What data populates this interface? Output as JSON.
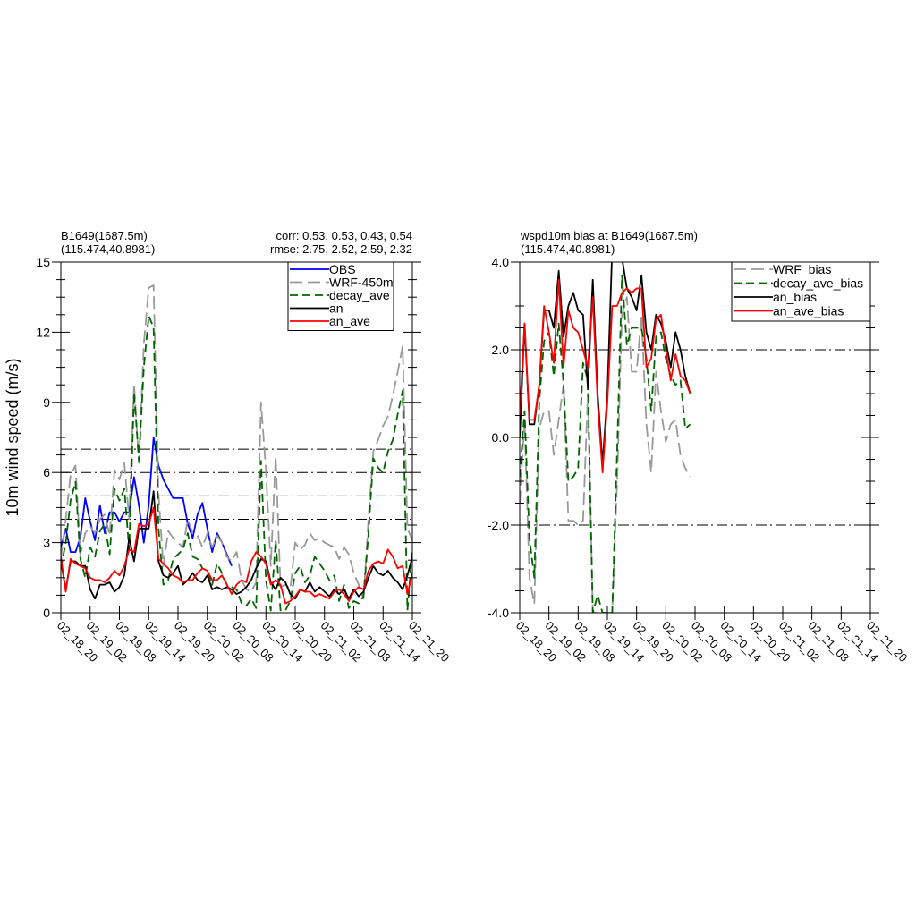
{
  "chart_data": [
    {
      "type": "line",
      "title_left": [
        "B1649(1687.5m)",
        "(115.474,40.8981)"
      ],
      "title_right": [
        "corr:  0.53, 0.53, 0.43, 0.54",
        "rmse: 2.75, 2.52, 2.59, 2.32"
      ],
      "ylabel": "10m wind speed (m/s)",
      "ylim": [
        0,
        15
      ],
      "yticks": [
        0,
        3,
        6,
        9,
        12,
        15
      ],
      "ytick_labels": [
        "0",
        "3",
        "6",
        "9",
        "12",
        "15"
      ],
      "xlim": [
        0,
        72
      ],
      "xticks": [
        0,
        6,
        12,
        18,
        24,
        30,
        36,
        42,
        48,
        54,
        60,
        66,
        72
      ],
      "xtick_labels": [
        "02_18_20",
        "02_19_02",
        "02_19_08",
        "02_19_14",
        "02_19_20",
        "02_20_02",
        "02_20_08",
        "02_20_14",
        "02_20_20",
        "02_21_02",
        "02_21_08",
        "02_21_14",
        "02_21_20"
      ],
      "ref_lines": [
        4,
        5,
        6,
        7
      ],
      "legend": "top-right",
      "series": [
        {
          "name": "OBS",
          "color": "#0000ff",
          "dash": "solid",
          "x": [
            0,
            1,
            2,
            3,
            4,
            5,
            6,
            7,
            8,
            9,
            10,
            11,
            12,
            13,
            14,
            15,
            16,
            17,
            18,
            19,
            20,
            21,
            22,
            23,
            24,
            25,
            26,
            27,
            28,
            29,
            30,
            31,
            32,
            33,
            34,
            35
          ],
          "y": [
            2.8,
            3.6,
            2.6,
            2.6,
            3.2,
            4.9,
            3.9,
            3.1,
            4.6,
            3.4,
            4.3,
            4.3,
            3.9,
            4.3,
            4.3,
            5.8,
            4.6,
            3.0,
            4.6,
            7.5,
            6.3,
            5.7,
            5.3,
            4.9,
            4.9,
            4.9,
            3.8,
            3.2,
            4.2,
            4.7,
            3.6,
            2.6,
            3.4,
            3.0,
            2.5,
            2.0
          ]
        },
        {
          "name": "WRF-450m",
          "color": "#999999",
          "dash": "long",
          "x": [
            0,
            1,
            2,
            3,
            4,
            5,
            6,
            7,
            8,
            9,
            10,
            11,
            12,
            13,
            14,
            15,
            16,
            17,
            18,
            19,
            20,
            21,
            22,
            23,
            24,
            25,
            26,
            27,
            28,
            29,
            30,
            31,
            32,
            33,
            34,
            35,
            36,
            37,
            38,
            39,
            40,
            41,
            42,
            43,
            44,
            45,
            46,
            47,
            48,
            49,
            50,
            51,
            52,
            53,
            54,
            55,
            56,
            57,
            58,
            59,
            60,
            61,
            62,
            63,
            64,
            65,
            66,
            67,
            68,
            69,
            70,
            71,
            72
          ],
          "y": [
            2.3,
            4.0,
            5.9,
            6.3,
            2.5,
            3.4,
            3.7,
            3.4,
            4.0,
            4.2,
            3.3,
            6.1,
            5.7,
            6.4,
            4.0,
            9.8,
            6.4,
            11.5,
            13.9,
            14.0,
            5.1,
            2.0,
            3.5,
            3.2,
            3.0,
            2.8,
            4.0,
            3.4,
            3.3,
            2.8,
            3.4,
            2.8,
            3.3,
            3.0,
            2.4,
            2.2,
            2.6,
            1.4,
            1.0,
            0.9,
            1.3,
            9.0,
            6.1,
            2.0,
            6.7,
            1.1,
            1.2,
            1.0,
            3.0,
            2.7,
            2.9,
            3.4,
            3.1,
            3.2,
            3.0,
            2.9,
            2.8,
            2.3,
            2.8,
            2.5,
            1.7,
            1.2,
            0.6,
            4.0,
            6.9,
            7.4,
            8.0,
            8.4,
            9.3,
            10.3,
            11.4,
            3.6,
            3.1
          ]
        },
        {
          "name": "decay_ave",
          "color": "#006400",
          "dash": "medium",
          "x": [
            0,
            1,
            2,
            3,
            4,
            5,
            6,
            7,
            8,
            9,
            10,
            11,
            12,
            13,
            14,
            15,
            16,
            17,
            18,
            19,
            20,
            21,
            22,
            23,
            24,
            25,
            26,
            27,
            28,
            29,
            30,
            31,
            32,
            33,
            34,
            35,
            36,
            37,
            38,
            39,
            40,
            41,
            42,
            43,
            44,
            45,
            46,
            47,
            48,
            49,
            50,
            51,
            52,
            53,
            54,
            55,
            56,
            57,
            58,
            59,
            60,
            61,
            62,
            63,
            64,
            65,
            66,
            67,
            68,
            69,
            70,
            71,
            72
          ],
          "y": [
            1.9,
            3.0,
            4.8,
            5.6,
            2.3,
            1.5,
            2.8,
            2.4,
            3.5,
            3.8,
            2.5,
            5.3,
            4.8,
            5.3,
            2.7,
            9.4,
            6.5,
            10.5,
            12.7,
            12.2,
            3.6,
            1.2,
            1.4,
            2.3,
            2.5,
            2.7,
            3.4,
            2.4,
            2.3,
            1.9,
            1.8,
            1.2,
            2.1,
            1.7,
            1.2,
            1.1,
            1.0,
            0.4,
            0.3,
            0.6,
            0.2,
            6.5,
            1.4,
            0.1,
            3.1,
            0.1,
            0.1,
            0.5,
            1.7,
            2.0,
            1.3,
            1.6,
            2.4,
            2.1,
            1.8,
            1.4,
            1.6,
            0.5,
            1.2,
            0.2,
            0.5,
            0.4,
            0.7,
            3.4,
            6.6,
            6.2,
            6.0,
            6.9,
            7.4,
            8.5,
            9.5,
            0.1,
            2.8
          ]
        },
        {
          "name": "an",
          "color": "#000000",
          "dash": "solid",
          "x": [
            0,
            1,
            2,
            3,
            4,
            5,
            6,
            7,
            8,
            9,
            10,
            11,
            12,
            13,
            14,
            15,
            16,
            17,
            18,
            19,
            20,
            21,
            22,
            23,
            24,
            25,
            26,
            27,
            28,
            29,
            30,
            31,
            32,
            33,
            34,
            35,
            36,
            37,
            38,
            39,
            40,
            41,
            42,
            43,
            44,
            45,
            46,
            47,
            48,
            49,
            50,
            51,
            52,
            53,
            54,
            55,
            56,
            57,
            58,
            59,
            60,
            61,
            62,
            63,
            64,
            65,
            66,
            67,
            68,
            69,
            70,
            71,
            72
          ],
          "y": [
            2.2,
            1.0,
            2.2,
            2.2,
            2.0,
            2.0,
            1.0,
            0.6,
            1.2,
            1.2,
            1.3,
            0.9,
            1.1,
            1.6,
            3.2,
            2.2,
            3.6,
            3.6,
            3.6,
            5.2,
            2.2,
            1.6,
            1.5,
            1.7,
            2.0,
            1.2,
            1.4,
            1.7,
            1.4,
            1.3,
            1.6,
            1.0,
            1.1,
            1.0,
            1.1,
            1.0,
            0.8,
            0.9,
            1.1,
            1.4,
            1.9,
            2.3,
            2.2,
            1.3,
            1.0,
            1.5,
            1.3,
            0.8,
            0.6,
            1.0,
            0.9,
            1.3,
            0.9,
            1.1,
            0.9,
            0.7,
            1.0,
            0.8,
            1.0,
            0.6,
            1.0,
            0.7,
            0.9,
            1.5,
            2.0,
            1.7,
            1.6,
            1.8,
            1.5,
            1.3,
            1.0,
            1.6,
            2.4
          ]
        },
        {
          "name": "an_ave",
          "color": "#ff0000",
          "dash": "solid",
          "x": [
            0,
            1,
            2,
            3,
            4,
            5,
            6,
            7,
            8,
            9,
            10,
            11,
            12,
            13,
            14,
            15,
            16,
            17,
            18,
            19,
            20,
            21,
            22,
            23,
            24,
            25,
            26,
            27,
            28,
            29,
            30,
            31,
            32,
            33,
            34,
            35,
            36,
            37,
            38,
            39,
            40,
            41,
            42,
            43,
            44,
            45,
            46,
            47,
            48,
            49,
            50,
            51,
            52,
            53,
            54,
            55,
            56,
            57,
            58,
            59,
            60,
            61,
            62,
            63,
            64,
            65,
            66,
            67,
            68,
            69,
            70,
            71,
            72
          ],
          "y": [
            2.4,
            0.9,
            2.3,
            2.1,
            2.0,
            1.9,
            1.5,
            1.4,
            1.4,
            1.3,
            1.5,
            1.8,
            1.6,
            2.0,
            2.7,
            2.6,
            3.8,
            3.7,
            3.8,
            4.5,
            2.3,
            2.1,
            1.9,
            1.6,
            1.5,
            1.3,
            1.4,
            1.4,
            1.7,
            1.9,
            1.8,
            1.4,
            1.4,
            1.6,
            1.2,
            0.8,
            1.2,
            1.4,
            1.3,
            2.2,
            2.6,
            2.4,
            2.1,
            1.2,
            1.4,
            1.2,
            0.4,
            0.5,
            0.7,
            1.0,
            0.9,
            0.9,
            0.7,
            0.8,
            0.7,
            0.6,
            0.9,
            1.0,
            0.8,
            0.5,
            0.9,
            1.1,
            1.0,
            1.8,
            2.1,
            2.2,
            2.1,
            2.7,
            2.4,
            1.9,
            2.0,
            0.8,
            1.7
          ]
        }
      ]
    },
    {
      "type": "line",
      "title_left": [
        "wspd10m bias at B1649(1687.5m)",
        "(115.474,40.8981)"
      ],
      "ylim": [
        -4,
        4
      ],
      "yticks": [
        -4,
        -2,
        0,
        2,
        4
      ],
      "ytick_labels": [
        "-4.0",
        "-2.0",
        "0.0",
        "2.0",
        "4.0"
      ],
      "xlim": [
        0,
        72
      ],
      "xticks": [
        0,
        6,
        12,
        18,
        24,
        30,
        36,
        42,
        48,
        54,
        60,
        66,
        72
      ],
      "xtick_labels": [
        "02_18_20",
        "02_19_02",
        "02_19_08",
        "02_19_14",
        "02_19_20",
        "02_20_02",
        "02_20_08",
        "02_20_14",
        "02_20_20",
        "02_21_02",
        "02_21_08",
        "02_21_14",
        "02_21_20"
      ],
      "ref_lines": [
        -2,
        2
      ],
      "legend": "top-right",
      "series": [
        {
          "name": "WRF_bias",
          "color": "#999999",
          "dash": "long",
          "x": [
            0,
            1,
            2,
            3,
            4,
            5,
            6,
            7,
            8,
            9,
            10,
            11,
            12,
            13,
            14,
            15,
            16,
            17,
            18,
            19,
            20,
            21,
            22,
            23,
            24,
            25,
            26,
            27,
            28,
            29,
            30,
            31,
            32,
            33,
            34,
            35
          ],
          "y": [
            -1.5,
            0.4,
            -3.2,
            -3.8,
            0.2,
            0.6,
            0.6,
            -0.4,
            0.4,
            1.2,
            -1.9,
            -1.9,
            -2.0,
            -1.9,
            1.0,
            -4.0,
            -4.0,
            -4.0,
            -4.0,
            -4.0,
            -1.0,
            2.8,
            3.2,
            1.5,
            1.5,
            2.8,
            0.3,
            -0.8,
            1.5,
            0.6,
            -0.1,
            0.3,
            0.4,
            -0.4,
            -0.7,
            -0.9
          ]
        },
        {
          "name": "decay_ave_bias",
          "color": "#006400",
          "dash": "medium",
          "x": [
            0,
            1,
            2,
            3,
            4,
            5,
            6,
            7,
            8,
            9,
            10,
            11,
            12,
            13,
            14,
            15,
            16,
            17,
            18,
            19,
            20,
            21,
            22,
            23,
            24,
            25,
            26,
            27,
            28,
            29,
            30,
            31,
            32,
            33,
            34,
            35
          ],
          "y": [
            -0.9,
            0.6,
            -2.3,
            -3.2,
            0.8,
            2.2,
            2.4,
            1.4,
            2.6,
            1.2,
            -1.0,
            -0.9,
            -0.7,
            1.7,
            1.3,
            -4.0,
            -3.6,
            -4.0,
            -4.0,
            -4.0,
            -0.3,
            3.7,
            2.1,
            2.5,
            2.5,
            2.5,
            1.8,
            0.6,
            2.3,
            2.4,
            1.8,
            1.4,
            1.2,
            1.3,
            0.2,
            0.3
          ]
        },
        {
          "name": "an_bias",
          "color": "#000000",
          "dash": "solid",
          "x": [
            0,
            1,
            2,
            3,
            4,
            5,
            6,
            7,
            8,
            9,
            10,
            11,
            12,
            13,
            14,
            15,
            16,
            17,
            18,
            19,
            20,
            21,
            22,
            23,
            24,
            25,
            26,
            27,
            28,
            29,
            30,
            31,
            32,
            33,
            34,
            35
          ],
          "y": [
            0.0,
            2.6,
            0.3,
            0.3,
            1.2,
            2.9,
            2.9,
            2.5,
            3.8,
            2.3,
            3.0,
            3.3,
            2.9,
            2.8,
            1.1,
            3.6,
            1.0,
            -0.6,
            1.0,
            4.3,
            4.1,
            4.1,
            3.4,
            3.2,
            2.9,
            3.7,
            2.4,
            2.0,
            2.8,
            2.6,
            2.2,
            1.6,
            2.4,
            2.0,
            1.4,
            1.0
          ]
        },
        {
          "name": "an_ave_bias",
          "color": "#ff0000",
          "dash": "solid",
          "x": [
            0,
            1,
            2,
            3,
            4,
            5,
            6,
            7,
            8,
            9,
            10,
            11,
            12,
            13,
            14,
            15,
            16,
            17,
            18,
            19,
            20,
            21,
            22,
            23,
            24,
            25,
            26,
            27,
            28,
            29,
            30,
            31,
            32,
            33,
            34,
            35
          ],
          "y": [
            0.5,
            2.6,
            0.4,
            0.4,
            1.2,
            3.0,
            2.4,
            1.7,
            3.6,
            1.6,
            2.9,
            2.5,
            2.4,
            2.0,
            1.6,
            3.2,
            0.8,
            -0.8,
            0.8,
            3.0,
            3.0,
            3.3,
            3.4,
            3.3,
            3.4,
            3.4,
            1.6,
            1.8,
            2.7,
            2.8,
            2.0,
            1.3,
            1.9,
            1.4,
            1.3,
            1.0
          ]
        }
      ]
    }
  ]
}
